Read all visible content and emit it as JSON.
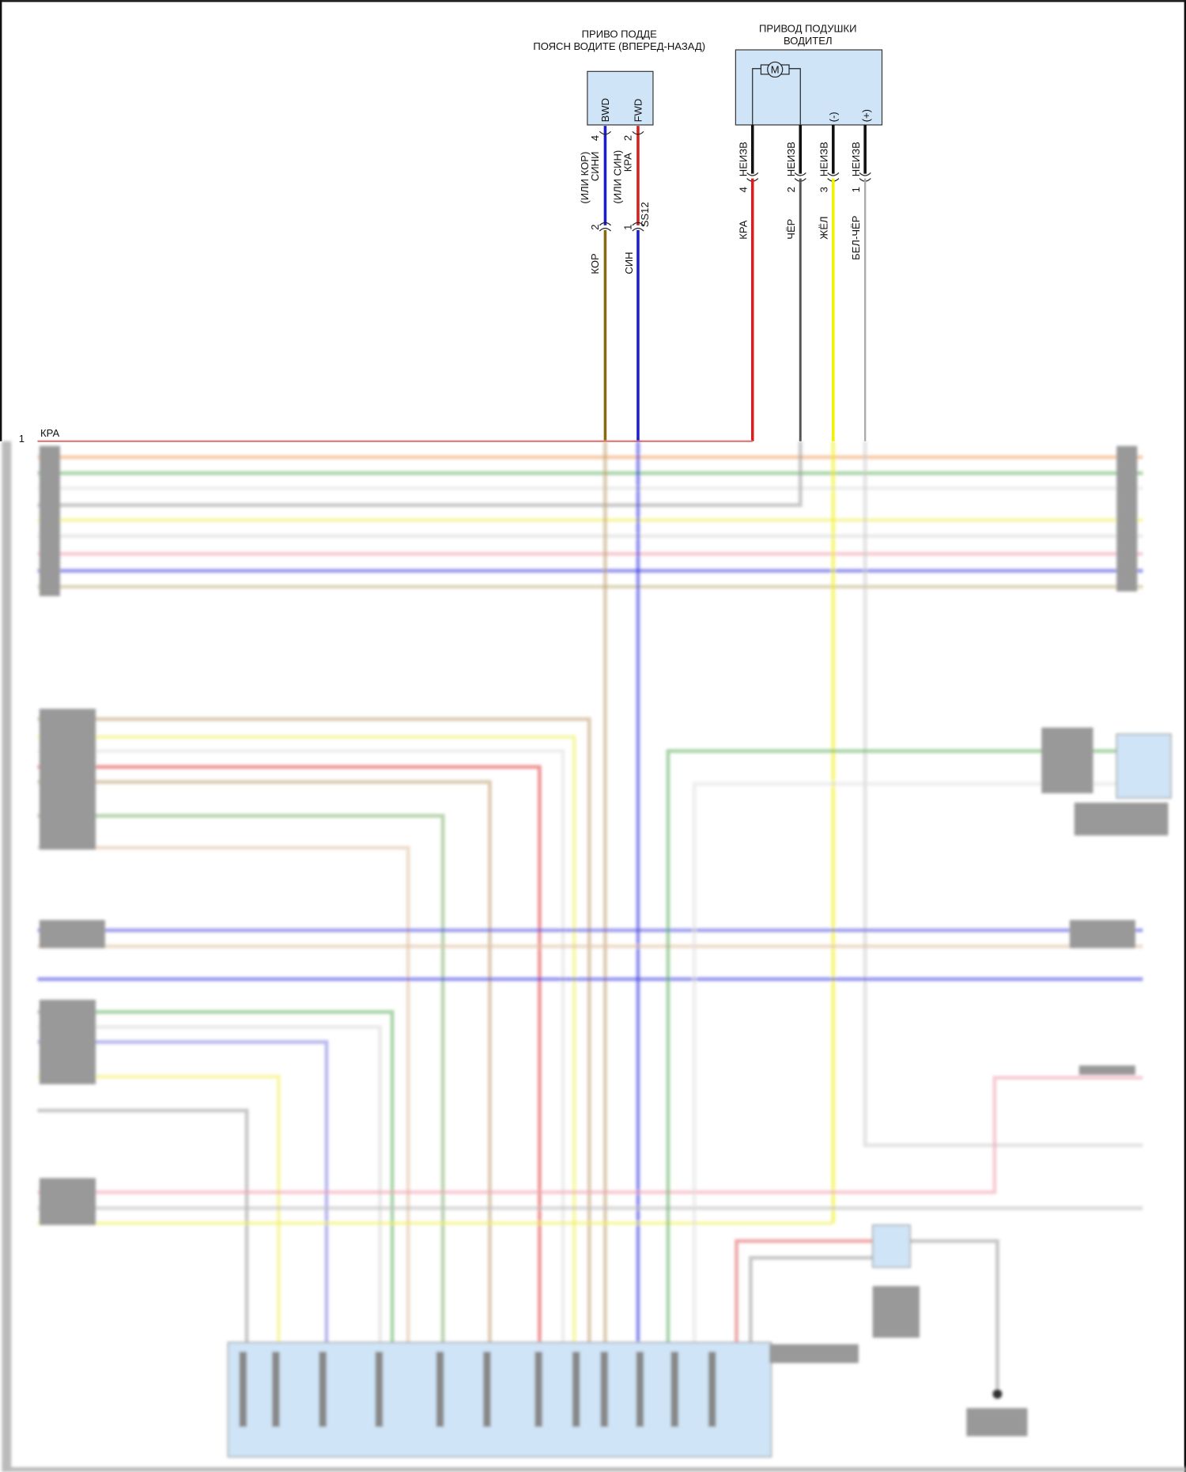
{
  "diagram": {
    "component_belt": {
      "title_line1": "ПРИВО ПОДДЕ",
      "title_line2": "ПОЯСН ВОДИТЕ (ВПЕРЕД-НАЗАД)",
      "pin_bwd": "BWD",
      "pin_fwd": "FWD",
      "bwd_pin_no": "4",
      "fwd_pin_no": "2",
      "bwd_wire": "СИНИ",
      "bwd_wire_alt": "(ИЛИ КОР)",
      "fwd_wire": "КРА",
      "fwd_wire_alt": "(ИЛИ СИН)",
      "conn_pin_bwd": "2",
      "conn_pin_fwd": "1",
      "connector": "SS12",
      "lower_bwd_wire": "КОР",
      "lower_fwd_wire": "СИН"
    },
    "component_cushion": {
      "title_line1": "ПРИВОД ПОДУШКИ",
      "title_line2": "ВОДИТЕЛ",
      "motor": "M",
      "pin_minus": "(-)",
      "pin_plus": "(+)",
      "wires": [
        {
          "upper": "НЕИЗВ",
          "pin": "4",
          "lower": "КРА",
          "color": "#d42020"
        },
        {
          "upper": "НЕИЗВ",
          "pin": "2",
          "lower": "ЧЁР",
          "color": "#555555"
        },
        {
          "upper": "НЕИЗВ",
          "pin": "3",
          "lower": "ЖЁЛ",
          "color": "#f2f200"
        },
        {
          "upper": "НЕИЗВ",
          "pin": "1",
          "lower": "БЕЛ-ЧЁР",
          "color": "#aaaaaa"
        }
      ]
    },
    "bus": {
      "first_pin": "1",
      "first_wire": "КРА"
    },
    "colors": {
      "component_fill": "#cfe4f6",
      "blue_wire": "#1c1cd0",
      "brown_wire": "#8a6a10"
    }
  }
}
